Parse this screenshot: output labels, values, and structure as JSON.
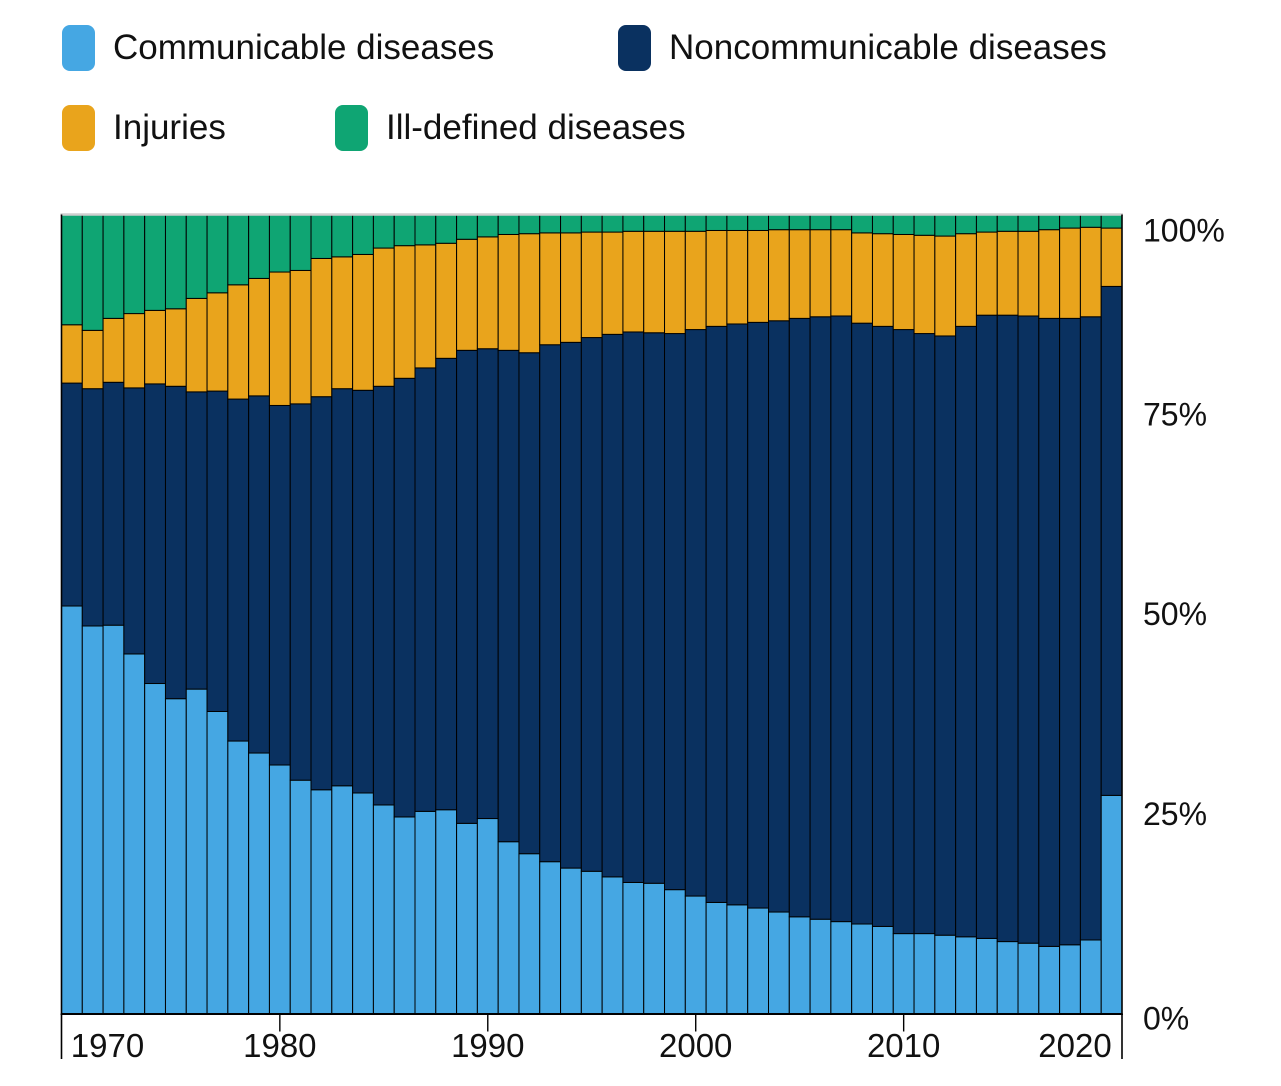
{
  "legend": {
    "items": [
      {
        "label": "Communicable diseases",
        "color": "#45a7e3"
      },
      {
        "label": "Noncommunicable diseases",
        "color": "#0a3160"
      },
      {
        "label": "Injuries",
        "color": "#e9a41c"
      },
      {
        "label": "Ill-defined diseases",
        "color": "#0fa573"
      }
    ]
  },
  "axes": {
    "x_tick_labels": [
      "1970",
      "1980",
      "1990",
      "2000",
      "2010",
      "2020"
    ],
    "x_tick_years": [
      1970,
      1980,
      1990,
      2000,
      2010,
      2020
    ],
    "y_tick_labels": [
      "0%",
      "25%",
      "50%",
      "75%",
      "100%"
    ],
    "y_tick_values": [
      0,
      25,
      50,
      75,
      100
    ]
  },
  "chart_data": {
    "type": "bar",
    "subtype": "stacked-100-percent",
    "title": "",
    "xlabel": "",
    "ylabel": "",
    "ylim": [
      0,
      100
    ],
    "grid": false,
    "legend_position": "top",
    "x": [
      1970,
      1971,
      1972,
      1973,
      1974,
      1975,
      1976,
      1977,
      1978,
      1979,
      1980,
      1981,
      1982,
      1983,
      1984,
      1985,
      1986,
      1987,
      1988,
      1989,
      1990,
      1991,
      1992,
      1993,
      1994,
      1995,
      1996,
      1997,
      1998,
      1999,
      2000,
      2001,
      2002,
      2003,
      2004,
      2005,
      2006,
      2007,
      2008,
      2009,
      2010,
      2011,
      2012,
      2013,
      2014,
      2015,
      2016,
      2017,
      2018,
      2019,
      2020
    ],
    "series": [
      {
        "name": "Communicable diseases",
        "color": "#45a7e3",
        "values": [
          51.0,
          48.5,
          48.6,
          45.0,
          41.3,
          39.4,
          40.6,
          37.8,
          34.1,
          32.6,
          31.1,
          29.2,
          28.0,
          28.5,
          27.6,
          26.1,
          24.6,
          25.3,
          25.5,
          23.8,
          24.4,
          21.5,
          20.0,
          19.0,
          18.2,
          17.8,
          17.1,
          16.4,
          16.3,
          15.5,
          14.7,
          13.9,
          13.6,
          13.2,
          12.7,
          12.1,
          11.8,
          11.5,
          11.2,
          10.9,
          10.0,
          10.0,
          9.8,
          9.6,
          9.4,
          9.0,
          8.8,
          8.4,
          8.6,
          9.2,
          27.3
        ]
      },
      {
        "name": "Noncommunicable diseases",
        "color": "#0a3160",
        "values": [
          27.9,
          29.7,
          30.4,
          33.3,
          37.5,
          39.1,
          37.2,
          40.1,
          42.8,
          44.7,
          45.0,
          47.1,
          49.2,
          49.7,
          50.4,
          52.4,
          54.9,
          55.5,
          56.5,
          59.2,
          58.8,
          61.5,
          62.7,
          64.7,
          65.8,
          66.8,
          67.9,
          68.9,
          68.9,
          69.6,
          70.9,
          72.1,
          72.7,
          73.3,
          74.0,
          74.9,
          75.4,
          75.8,
          75.2,
          75.1,
          75.6,
          75.1,
          75.0,
          76.4,
          78.0,
          78.4,
          78.5,
          78.6,
          78.4,
          78.0,
          63.7
        ]
      },
      {
        "name": "Injuries",
        "color": "#e9a41c",
        "values": [
          7.3,
          7.3,
          8.0,
          9.3,
          9.2,
          9.7,
          11.7,
          12.3,
          14.3,
          14.7,
          16.7,
          16.7,
          17.3,
          16.5,
          17.0,
          17.3,
          16.6,
          15.4,
          14.4,
          13.9,
          14.0,
          14.5,
          14.9,
          14.0,
          13.7,
          13.2,
          12.8,
          12.6,
          12.7,
          12.8,
          12.3,
          12.0,
          11.7,
          11.5,
          11.4,
          11.1,
          10.9,
          10.8,
          11.3,
          11.6,
          11.9,
          12.3,
          12.5,
          11.6,
          10.4,
          10.5,
          10.6,
          11.1,
          11.3,
          11.2,
          7.3
        ]
      },
      {
        "name": "Ill-defined diseases",
        "color": "#0fa573",
        "values": [
          13.8,
          14.5,
          13.0,
          12.4,
          12.0,
          11.8,
          10.5,
          9.8,
          8.8,
          8.0,
          7.2,
          7.0,
          5.5,
          5.3,
          5.0,
          4.2,
          3.9,
          3.8,
          3.6,
          3.1,
          2.8,
          2.5,
          2.4,
          2.3,
          2.3,
          2.2,
          2.2,
          2.1,
          2.1,
          2.1,
          2.1,
          2.0,
          2.0,
          2.0,
          1.9,
          1.9,
          1.9,
          1.9,
          2.3,
          2.4,
          2.5,
          2.6,
          2.7,
          2.4,
          2.2,
          2.1,
          2.1,
          1.9,
          1.7,
          1.6,
          1.7
        ]
      }
    ]
  }
}
